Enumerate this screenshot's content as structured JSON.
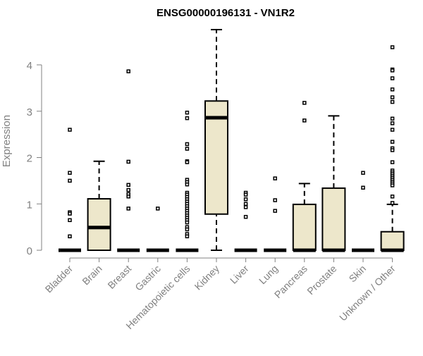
{
  "chart_data": {
    "type": "boxplot",
    "title": "ENSG00000196131 - VN1R2",
    "xlabel": "",
    "ylabel": "Expression",
    "ylim": [
      0,
      4.8
    ],
    "yticks": [
      0,
      1,
      2,
      3,
      4
    ],
    "colors": {
      "box_fill": "#EDE7CB",
      "box_stroke": "#000000",
      "axis": "#808080",
      "text_axis": "#808080"
    },
    "categories": [
      "Bladder",
      "Brain",
      "Breast",
      "Gastric",
      "Hematopoietic cells",
      "Kidney",
      "Liver",
      "Lung",
      "Pancreas",
      "Prostate",
      "Skin",
      "Unknown / Other"
    ],
    "boxes": [
      {
        "q1": 0,
        "median": 0,
        "q3": 0,
        "lo": 0,
        "hi": 0,
        "outliers": [
          2.6,
          1.67,
          1.5,
          0.82,
          0.79,
          0.65,
          0.3
        ]
      },
      {
        "q1": 0,
        "median": 0.49,
        "q3": 1.11,
        "lo": 0,
        "hi": 1.92,
        "outliers": []
      },
      {
        "q1": 0,
        "median": 0,
        "q3": 0,
        "lo": 0,
        "hi": 0,
        "outliers": [
          3.86,
          1.91,
          1.41,
          1.3,
          1.21,
          1.16,
          0.9
        ]
      },
      {
        "q1": 0,
        "median": 0,
        "q3": 0,
        "lo": 0,
        "hi": 0,
        "outliers": [
          0.9
        ]
      },
      {
        "q1": 0,
        "median": 0,
        "q3": 0,
        "lo": 0,
        "hi": 0,
        "outliers": [
          2.97,
          2.85,
          2.29,
          2.19,
          1.92,
          1.9,
          1.52,
          1.47,
          1.42,
          1.24,
          1.2,
          1.15,
          1.1,
          1.05,
          1.0,
          0.95,
          0.9,
          0.85,
          0.8,
          0.75,
          0.7,
          0.65,
          0.6,
          0.5,
          0.45,
          0.35,
          0.3
        ]
      },
      {
        "q1": 0.78,
        "median": 2.86,
        "q3": 3.22,
        "lo": 0,
        "hi": 4.76,
        "outliers": []
      },
      {
        "q1": 0,
        "median": 0,
        "q3": 0,
        "lo": 0,
        "hi": 0,
        "outliers": [
          1.24,
          1.2,
          1.1,
          1.0,
          0.93,
          0.72
        ]
      },
      {
        "q1": 0,
        "median": 0,
        "q3": 0,
        "lo": 0,
        "hi": 0,
        "outliers": [
          1.55,
          1.08,
          0.85
        ]
      },
      {
        "q1": 0,
        "median": 0,
        "q3": 0.99,
        "lo": 0,
        "hi": 1.44,
        "outliers": [
          3.18,
          2.8
        ]
      },
      {
        "q1": 0,
        "median": 0,
        "q3": 1.34,
        "lo": 0,
        "hi": 2.9,
        "outliers": []
      },
      {
        "q1": 0,
        "median": 0,
        "q3": 0,
        "lo": 0,
        "hi": 0,
        "outliers": [
          1.67,
          1.35
        ]
      },
      {
        "q1": 0,
        "median": 0,
        "q3": 0.4,
        "lo": 0,
        "hi": 0.99,
        "outliers": [
          4.38,
          3.9,
          3.88,
          3.71,
          3.47,
          3.3,
          3.2,
          2.84,
          2.74,
          2.6,
          2.34,
          2.2,
          2.16,
          1.9,
          1.72,
          1.68,
          1.64,
          1.6,
          1.56,
          1.52,
          1.48,
          1.44,
          1.4,
          1.16,
          1.02
        ]
      }
    ]
  }
}
